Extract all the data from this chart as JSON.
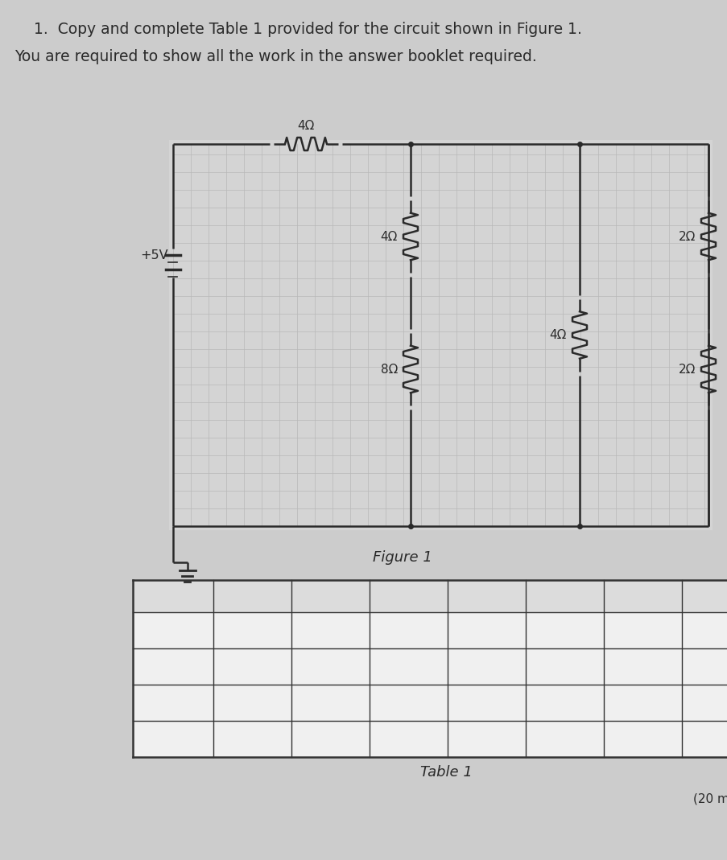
{
  "title_line1": "1.  Copy and complete Table 1 provided for the circuit shown in Figure 1.",
  "title_line2": "You are required to show all the work in the answer booklet required.",
  "figure_label": "Figure 1",
  "table_label": "Table 1",
  "bg_color": "#cccccc",
  "circuit_bg": "#d9d9d9",
  "line_color": "#2a2a2a",
  "grid_color": "#b8b8b8",
  "voltage": "+5V",
  "table_line_color": "#333333",
  "table_bg": "#e8e8e8",
  "header_bg": "#c0c0c0"
}
